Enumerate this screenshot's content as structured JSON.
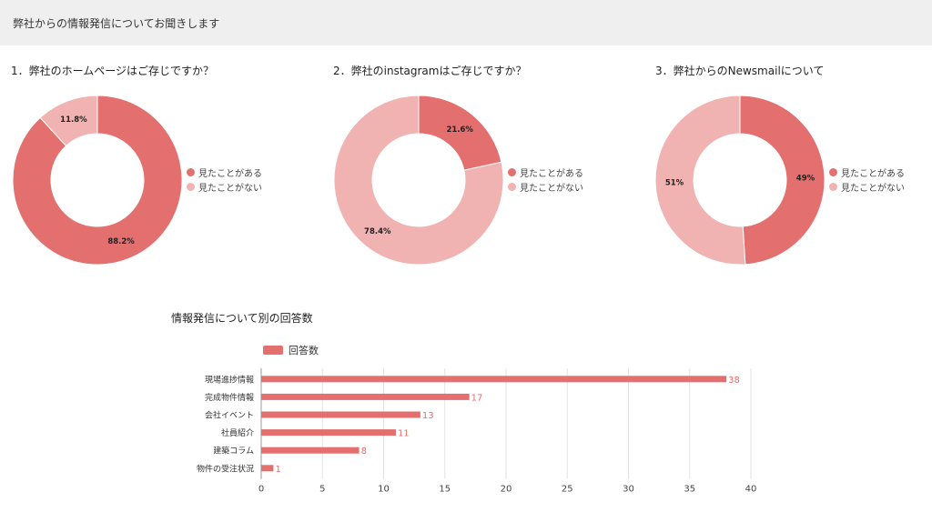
{
  "header": {
    "title": "弊社からの情報発信についてお聞きします"
  },
  "colors": {
    "primary": "#e36f6f",
    "secondary": "#f0b3b1"
  },
  "donuts": [
    {
      "title": "1．弊社のホームページはご存じですか？",
      "legend": [
        "見たことがある",
        "見たことがない"
      ],
      "labels": [
        "88.2%",
        "11.8%"
      ]
    },
    {
      "title": "2．弊社のinstagramはご存じですか？",
      "legend": [
        "見たことがある",
        "見たことがない"
      ],
      "labels": [
        "21.6%",
        "78.4%"
      ]
    },
    {
      "title": "3．弊社からのNewsmailについて",
      "legend": [
        "見たことがある",
        "見たことがない"
      ],
      "labels": [
        "49%",
        "51%"
      ]
    }
  ],
  "bar": {
    "title": "情報発信について別の回答数",
    "legend": "回答数"
  },
  "chart_data": [
    {
      "type": "pie",
      "title": "1．弊社のホームページはご存じですか？",
      "categories": [
        "見たことがある",
        "見たことがない"
      ],
      "values": [
        88.2,
        11.8
      ],
      "legend_position": "right"
    },
    {
      "type": "pie",
      "title": "2．弊社のinstagramはご存じですか？",
      "categories": [
        "見たことがある",
        "見たことがない"
      ],
      "values": [
        21.6,
        78.4
      ],
      "legend_position": "right"
    },
    {
      "type": "pie",
      "title": "3．弊社からのNewsmailについて",
      "categories": [
        "見たことがある",
        "見たことがない"
      ],
      "values": [
        49,
        51
      ],
      "legend_position": "right"
    },
    {
      "type": "bar",
      "orientation": "horizontal",
      "title": "情報発信について別の回答数",
      "categories": [
        "現場進捗情報",
        "完成物件情報",
        "会社イベント",
        "社員紹介",
        "建築コラム",
        "物件の受注状況"
      ],
      "series": [
        {
          "name": "回答数",
          "values": [
            38,
            17,
            13,
            11,
            8,
            1
          ]
        }
      ],
      "xlim": [
        0,
        40
      ],
      "xticks": [
        0,
        5,
        10,
        15,
        20,
        25,
        30,
        35,
        40
      ],
      "grid": true,
      "legend_position": "top"
    }
  ]
}
